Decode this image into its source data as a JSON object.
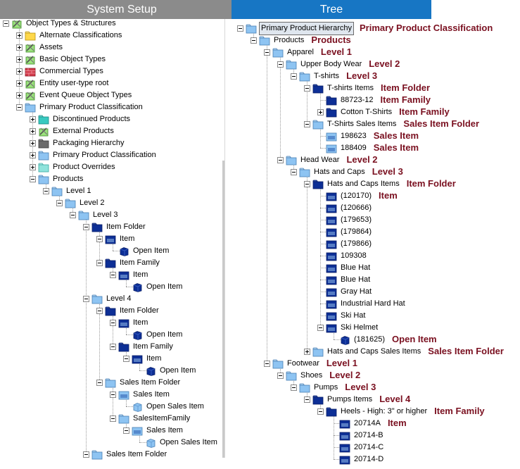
{
  "left_panel": {
    "title": "System Setup",
    "nodes": [
      {
        "l": 0,
        "exp": "minus",
        "icon": "tools",
        "label": "Object Types & Structures"
      },
      {
        "l": 1,
        "exp": "plus",
        "icon": "folder-yellow",
        "label": "Alternate Classifications"
      },
      {
        "l": 1,
        "exp": "plus",
        "icon": "tools",
        "label": "Assets"
      },
      {
        "l": 1,
        "exp": "plus",
        "icon": "tools",
        "label": "Basic Object Types"
      },
      {
        "l": 1,
        "exp": "plus",
        "icon": "brick",
        "label": "Commercial Types"
      },
      {
        "l": 1,
        "exp": "plus",
        "icon": "tools",
        "label": "Entity user-type root"
      },
      {
        "l": 1,
        "exp": "plus",
        "icon": "tools",
        "label": "Event Queue Object Types"
      },
      {
        "l": 1,
        "exp": "minus",
        "icon": "folder",
        "label": "Primary Product Classification"
      },
      {
        "l": 2,
        "exp": "plus",
        "icon": "folder-teal",
        "label": "Discontinued Products"
      },
      {
        "l": 2,
        "exp": "plus",
        "icon": "tools",
        "label": "External Products"
      },
      {
        "l": 2,
        "exp": "plus",
        "icon": "folder-gray",
        "label": "Packaging Hierarchy"
      },
      {
        "l": 2,
        "exp": "plus",
        "icon": "folder",
        "label": "Primary Product Classification"
      },
      {
        "l": 2,
        "exp": "plus",
        "icon": "folder-teal2",
        "label": "Product Overrides"
      },
      {
        "l": 2,
        "exp": "minus",
        "icon": "folder",
        "label": "Products"
      },
      {
        "l": 3,
        "exp": "minus",
        "icon": "folder",
        "label": "Level 1"
      },
      {
        "l": 4,
        "exp": "minus",
        "icon": "folder",
        "label": "Level 2"
      },
      {
        "l": 5,
        "exp": "minus",
        "icon": "folder",
        "label": "Level 3"
      },
      {
        "l": 6,
        "exp": "minus",
        "icon": "folder-dark",
        "label": "Item Folder"
      },
      {
        "l": 7,
        "exp": "minus",
        "icon": "item",
        "label": "Item"
      },
      {
        "l": 8,
        "exp": "none",
        "icon": "cube",
        "label": "Open Item"
      },
      {
        "l": 7,
        "exp": "minus",
        "icon": "folder-dark",
        "label": "Item Family"
      },
      {
        "l": 8,
        "exp": "minus",
        "icon": "item",
        "label": "Item"
      },
      {
        "l": 9,
        "exp": "none",
        "icon": "cube",
        "label": "Open Item"
      },
      {
        "l": 6,
        "exp": "minus",
        "icon": "folder",
        "label": "Level 4"
      },
      {
        "l": 7,
        "exp": "minus",
        "icon": "folder-dark",
        "label": "Item Folder"
      },
      {
        "l": 8,
        "exp": "minus",
        "icon": "item",
        "label": "Item"
      },
      {
        "l": 9,
        "exp": "none",
        "icon": "cube",
        "label": "Open Item"
      },
      {
        "l": 8,
        "exp": "minus",
        "icon": "folder-dark",
        "label": "Item Family"
      },
      {
        "l": 9,
        "exp": "minus",
        "icon": "item",
        "label": "Item"
      },
      {
        "l": 10,
        "exp": "none",
        "icon": "cube",
        "label": "Open Item"
      },
      {
        "l": 7,
        "exp": "minus",
        "icon": "folder",
        "label": "Sales Item Folder"
      },
      {
        "l": 8,
        "exp": "minus",
        "icon": "sales-item",
        "label": "Sales Item"
      },
      {
        "l": 9,
        "exp": "none",
        "icon": "cube-light",
        "label": "Open Sales Item"
      },
      {
        "l": 8,
        "exp": "minus",
        "icon": "folder",
        "label": "SalesItemFamily"
      },
      {
        "l": 9,
        "exp": "minus",
        "icon": "sales-item",
        "label": "Sales Item"
      },
      {
        "l": 10,
        "exp": "none",
        "icon": "cube-light",
        "label": "Open Sales Item"
      },
      {
        "l": 6,
        "exp": "minus",
        "icon": "folder",
        "label": "Sales Item Folder"
      }
    ]
  },
  "right_panel": {
    "title": "Tree",
    "nodes": [
      {
        "l": 0,
        "exp": "minus",
        "icon": "folder",
        "label": "Primary Product Hierarchy",
        "selected": true,
        "annotation": "Primary Product Classification"
      },
      {
        "l": 1,
        "exp": "minus",
        "icon": "folder",
        "label": "Products",
        "annotation": "Products"
      },
      {
        "l": 2,
        "exp": "minus",
        "icon": "folder",
        "label": "Apparel",
        "annotation": "Level 1"
      },
      {
        "l": 3,
        "exp": "minus",
        "icon": "folder",
        "label": "Upper Body Wear",
        "annotation": "Level 2"
      },
      {
        "l": 4,
        "exp": "minus",
        "icon": "folder",
        "label": "T-shirts",
        "annotation": "Level 3"
      },
      {
        "l": 5,
        "exp": "minus",
        "icon": "folder-dark",
        "label": "T-shirts Items",
        "annotation": "Item Folder"
      },
      {
        "l": 6,
        "exp": "none",
        "icon": "folder-dark",
        "label": "88723-12",
        "annotation": "Item Family"
      },
      {
        "l": 6,
        "exp": "plus",
        "icon": "folder-dark",
        "label": "Cotton T-Shirts",
        "annotation": "Item Family"
      },
      {
        "l": 5,
        "exp": "minus",
        "icon": "folder",
        "label": "T-Shirts Sales Items",
        "annotation": "Sales Item Folder"
      },
      {
        "l": 6,
        "exp": "none",
        "icon": "sales-item",
        "label": "198623",
        "annotation": "Sales Item"
      },
      {
        "l": 6,
        "exp": "none",
        "icon": "sales-item",
        "label": "188409",
        "annotation": "Sales Item"
      },
      {
        "l": 3,
        "exp": "minus",
        "icon": "folder",
        "label": "Head Wear",
        "annotation": "Level 2"
      },
      {
        "l": 4,
        "exp": "minus",
        "icon": "folder",
        "label": "Hats and Caps",
        "annotation": "Level 3"
      },
      {
        "l": 5,
        "exp": "minus",
        "icon": "folder-dark",
        "label": "Hats and Caps Items",
        "annotation": "Item Folder"
      },
      {
        "l": 6,
        "exp": "none",
        "icon": "item",
        "label": "(120170)",
        "annotation": "Item"
      },
      {
        "l": 6,
        "exp": "none",
        "icon": "item",
        "label": "(120666)"
      },
      {
        "l": 6,
        "exp": "none",
        "icon": "item",
        "label": "(179653)"
      },
      {
        "l": 6,
        "exp": "none",
        "icon": "item",
        "label": "(179864)"
      },
      {
        "l": 6,
        "exp": "none",
        "icon": "item",
        "label": "(179866)"
      },
      {
        "l": 6,
        "exp": "none",
        "icon": "item",
        "label": "109308"
      },
      {
        "l": 6,
        "exp": "none",
        "icon": "item",
        "label": "Blue Hat"
      },
      {
        "l": 6,
        "exp": "none",
        "icon": "item",
        "label": "Blue Hat"
      },
      {
        "l": 6,
        "exp": "none",
        "icon": "item",
        "label": "Gray Hat"
      },
      {
        "l": 6,
        "exp": "none",
        "icon": "item",
        "label": "Industrial Hard Hat"
      },
      {
        "l": 6,
        "exp": "none",
        "icon": "item",
        "label": "Ski Hat"
      },
      {
        "l": 6,
        "exp": "minus",
        "icon": "item",
        "label": "Ski Helmet"
      },
      {
        "l": 7,
        "exp": "none",
        "icon": "cube",
        "label": "(181625)",
        "annotation": "Open Item"
      },
      {
        "l": 5,
        "exp": "plus",
        "icon": "folder",
        "label": "Hats and Caps Sales Items",
        "annotation": "Sales Item Folder"
      },
      {
        "l": 2,
        "exp": "minus",
        "icon": "folder",
        "label": "Footwear",
        "annotation": "Level 1"
      },
      {
        "l": 3,
        "exp": "minus",
        "icon": "folder",
        "label": "Shoes",
        "annotation": "Level 2"
      },
      {
        "l": 4,
        "exp": "minus",
        "icon": "folder",
        "label": "Pumps",
        "annotation": "Level 3"
      },
      {
        "l": 5,
        "exp": "minus",
        "icon": "folder-dark",
        "label": "Pumps Items",
        "annotation": "Level 4"
      },
      {
        "l": 6,
        "exp": "minus",
        "icon": "folder-dark",
        "label": "Heels - High: 3\" or higher",
        "annotation": "Item Family"
      },
      {
        "l": 7,
        "exp": "none",
        "icon": "item",
        "label": "20714A",
        "annotation": "Item"
      },
      {
        "l": 7,
        "exp": "none",
        "icon": "item",
        "label": "20714-B"
      },
      {
        "l": 7,
        "exp": "none",
        "icon": "item",
        "label": "20714-C"
      },
      {
        "l": 7,
        "exp": "none",
        "icon": "item",
        "label": "20714-D"
      }
    ]
  },
  "colors": {
    "left_header": "#8b8b8b",
    "right_header": "#1776c4",
    "annotation": "#7a1020",
    "folder": "#8ec4f2",
    "folder_dark": "#0d2f96"
  }
}
